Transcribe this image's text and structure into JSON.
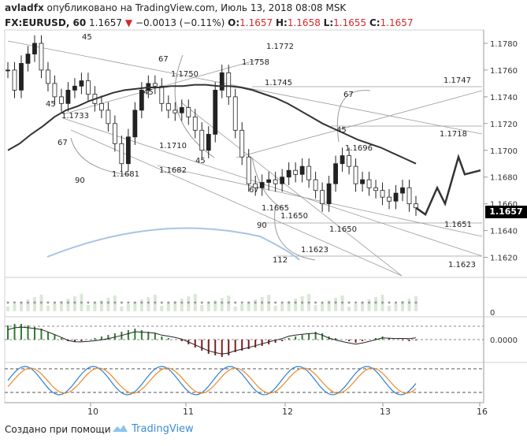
{
  "header": {
    "user": "avladfx",
    "published_text": "опубликовано на TradingView.com, Июль 13, 2018 08:08 MSK",
    "symbol": "FX:EURUSD, 60",
    "last": "1.1657",
    "change_arrow": "▼",
    "change": "−0.0013 (−0.11%)",
    "o_label": "O:",
    "o_val": "1.1657",
    "h_label": "H:",
    "h_val": "1.1658",
    "l_label": "L:",
    "l_val": "1.1655",
    "c_label": "C:",
    "c_val": "1.1657",
    "change_color": "#d32a2a"
  },
  "footer": {
    "created_with": "Создано при помощи",
    "brand": "TradingView",
    "brand_color": "#3a8dd6",
    "logo_icon": "tradingview-cloud-icon"
  },
  "current_price_tag": "1.1657",
  "chart_data": [
    {
      "type": "candlestick",
      "ylim": [
        1.1605,
        1.179
      ],
      "y_ticks": [
        "1.1780",
        "1.1760",
        "1.1740",
        "1.1720",
        "1.1700",
        "1.1680",
        "1.1660",
        "1.1640",
        "1.1620"
      ],
      "x_ticks": [
        "10",
        "11",
        "12",
        "13",
        "16"
      ],
      "colors": {
        "up": "#222222",
        "down": "#222222",
        "ma": "#333333",
        "projection": "#333333",
        "volume_ma": "#a7c4e2"
      },
      "ohlc_series_note": "",
      "close_path": [
        1.176,
        1.1745,
        1.1765,
        1.1772,
        1.178,
        1.176,
        1.175,
        1.174,
        1.1735,
        1.1745,
        1.1748,
        1.1752,
        1.1742,
        1.1735,
        1.173,
        1.172,
        1.1705,
        1.169,
        1.171,
        1.173,
        1.1745,
        1.175,
        1.1748,
        1.1735,
        1.173,
        1.1728,
        1.1732,
        1.1725,
        1.1715,
        1.17,
        1.1712,
        1.1745,
        1.1758,
        1.174,
        1.1715,
        1.1695,
        1.1675,
        1.1672,
        1.1676,
        1.1678,
        1.1675,
        1.168,
        1.1685,
        1.1682,
        1.1688,
        1.1678,
        1.167,
        1.166,
        1.1675,
        1.169,
        1.1696,
        1.1688,
        1.1675,
        1.1678,
        1.1672,
        1.167,
        1.1665,
        1.1662,
        1.1668,
        1.1672,
        1.166,
        1.1657
      ],
      "projection_path": [
        1.1657,
        1.1652,
        1.1672,
        1.166,
        1.1695,
        1.1682,
        1.1685
      ],
      "ma_path": [
        1.17,
        1.1705,
        1.1712,
        1.1718,
        1.1725,
        1.173,
        1.1733,
        1.1737,
        1.174,
        1.1743,
        1.1745,
        1.1746,
        1.1747,
        1.1747,
        1.1748,
        1.1748,
        1.1749,
        1.1749,
        1.1748,
        1.1748,
        1.1747,
        1.1745,
        1.1742,
        1.1739,
        1.1735,
        1.173,
        1.1725,
        1.172,
        1.1716,
        1.1712,
        1.1708,
        1.1705,
        1.1702,
        1.1698,
        1.1694,
        1.169
      ],
      "price_labels": [
        "1.1772",
        "1.1758",
        "1.1750",
        "1.1745",
        "1.1747",
        "1.1733",
        "1.1718",
        "1.1710",
        "1.1696",
        "1.1682",
        "1.1681",
        "1.1665",
        "1.1650",
        "1.1650",
        "1.1651",
        "1.1623",
        "1.1623"
      ],
      "angle_labels": [
        "45",
        "45",
        "45",
        "45",
        "45",
        "67",
        "67",
        "67",
        "67",
        "90",
        "90",
        "112"
      ]
    },
    {
      "type": "bar",
      "title": "",
      "y_ticks": [
        "0"
      ],
      "colors": {
        "bars": "#d9e8d5",
        "dots": "#9a9a9a"
      }
    },
    {
      "type": "bar",
      "title": "",
      "y_ticks": [
        "0.0000"
      ],
      "colors": {
        "positive": "#2e7d32",
        "negative": "#7f1d1d",
        "signal": "#222222"
      }
    },
    {
      "type": "line",
      "title": "",
      "colors": {
        "k": "#2f7fd1",
        "d": "#e98a2b"
      }
    }
  ]
}
